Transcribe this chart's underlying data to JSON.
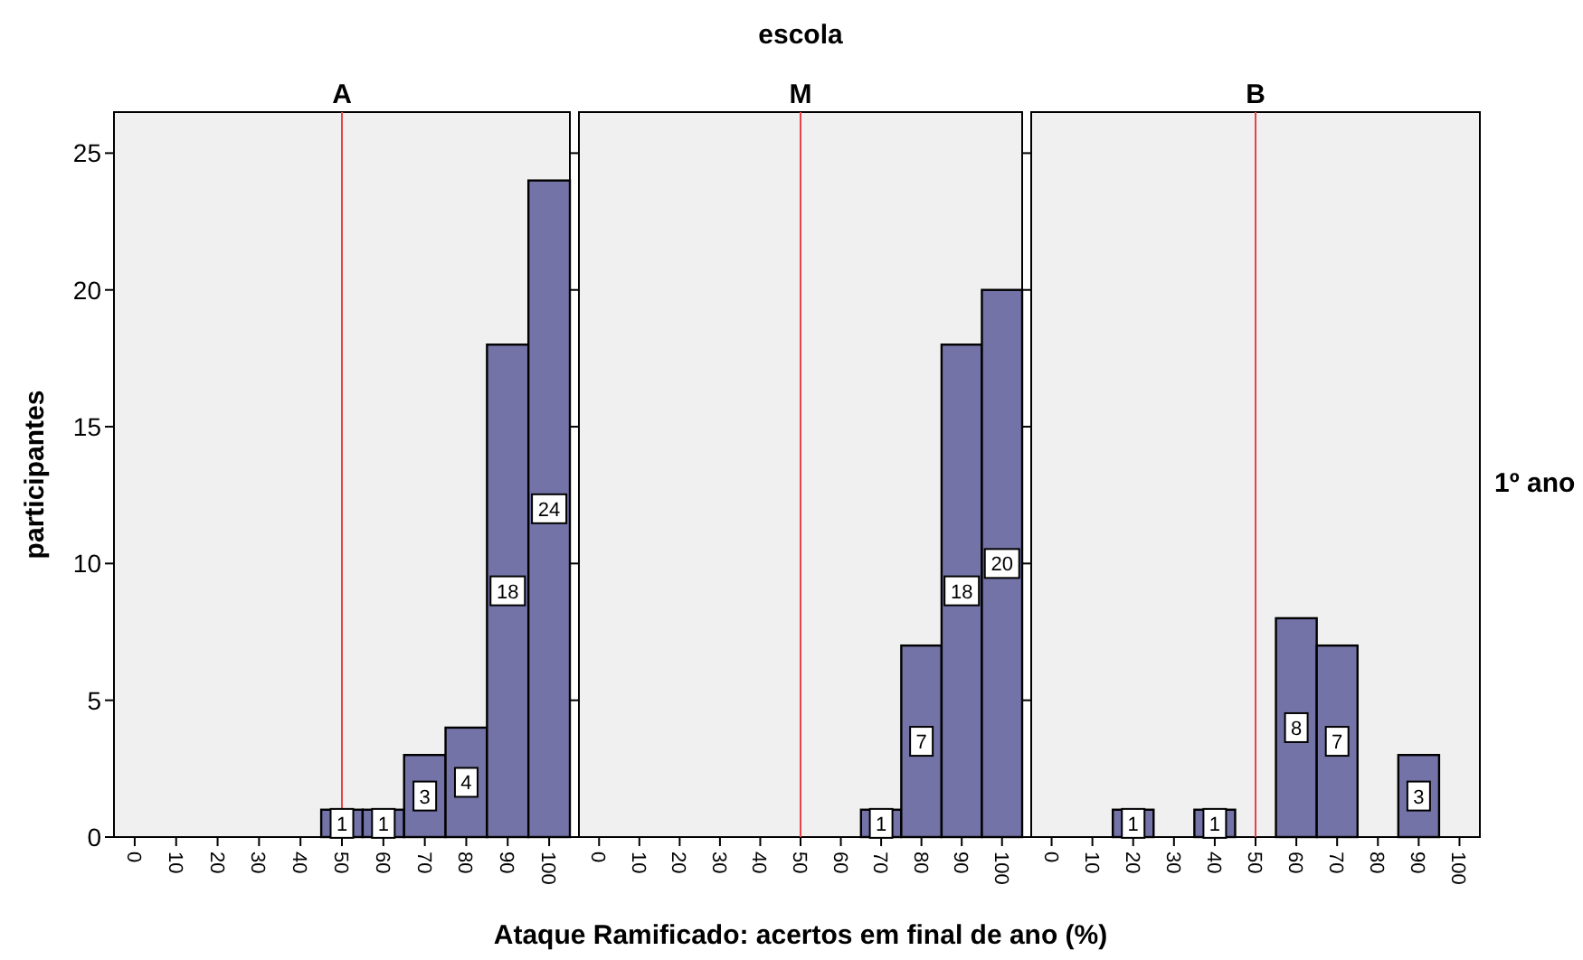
{
  "chart_data": [
    {
      "type": "bar",
      "title": "A",
      "ylabel": "participantes",
      "categories": [
        "0",
        "10",
        "20",
        "30",
        "40",
        "50",
        "60",
        "70",
        "80",
        "90",
        "100"
      ],
      "values": [
        0,
        0,
        0,
        0,
        0,
        1,
        1,
        3,
        4,
        18,
        24
      ],
      "value_labels": [
        null,
        null,
        null,
        null,
        null,
        "1",
        "1",
        "3",
        "4",
        "18",
        "24"
      ],
      "color": "#7373a8",
      "ylim": [
        0,
        26.5
      ],
      "yticks": [
        0,
        5,
        10,
        15,
        20,
        25
      ],
      "ref_lines": [
        {
          "axis": "x",
          "value": "50",
          "color": "#e8434a"
        }
      ]
    },
    {
      "type": "bar",
      "title": "M",
      "subtitle": "escola",
      "xlabel": "Ataque Ramificado: acertos em final de ano (%)",
      "categories": [
        "0",
        "10",
        "20",
        "30",
        "40",
        "50",
        "60",
        "70",
        "80",
        "90",
        "100"
      ],
      "values": [
        0,
        0,
        0,
        0,
        0,
        0,
        0,
        1,
        7,
        18,
        20
      ],
      "value_labels": [
        null,
        null,
        null,
        null,
        null,
        null,
        null,
        "1",
        "7",
        "18",
        "20"
      ],
      "color": "#7373a8",
      "ylim": [
        0,
        26.5
      ],
      "yticks": [
        0,
        5,
        10,
        15,
        20,
        25
      ],
      "tick_labels": "x",
      "ref_lines": [
        {
          "axis": "x",
          "value": "50",
          "color": "#e8434a"
        }
      ]
    },
    {
      "type": "bar",
      "title": "B",
      "annotations": [
        "1º ano"
      ],
      "categories": [
        "0",
        "10",
        "20",
        "30",
        "40",
        "50",
        "60",
        "70",
        "80",
        "90",
        "100"
      ],
      "values": [
        0,
        0,
        1,
        0,
        1,
        0,
        8,
        7,
        0,
        3,
        0
      ],
      "value_labels": [
        null,
        null,
        "1",
        null,
        "1",
        null,
        "8",
        "7",
        null,
        "3",
        null
      ],
      "color": "#7373a8",
      "ylim": [
        0,
        26.5
      ],
      "yticks": [
        0,
        5,
        10,
        15,
        20,
        25
      ],
      "tick_labels": "x",
      "ref_lines": [
        {
          "axis": "x",
          "value": "50",
          "color": "#e8434a"
        }
      ]
    }
  ]
}
